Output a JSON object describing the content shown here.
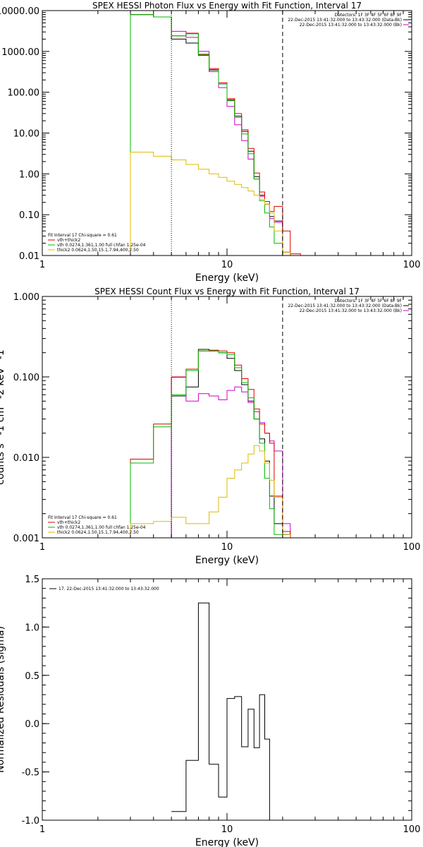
{
  "chart_data": [
    {
      "type": "line",
      "title": "SPEX HESSI Photon Flux vs Energy with Fit Function, Interval 17",
      "xlabel": "Energy (keV)",
      "ylabel": "",
      "xscale": "log",
      "yscale": "log",
      "xlim": [
        1,
        100
      ],
      "ylim": [
        0.01,
        10000
      ],
      "xticks": [
        {
          "v": 1,
          "label": "1"
        },
        {
          "v": 10,
          "label": "10"
        },
        {
          "v": 100,
          "label": "100"
        }
      ],
      "yticks": [
        {
          "v": 0.01,
          "label": "0.01"
        },
        {
          "v": 0.1,
          "label": "0.10"
        },
        {
          "v": 1,
          "label": "1.00"
        },
        {
          "v": 10,
          "label": "10.00"
        },
        {
          "v": 100,
          "label": "100.00"
        },
        {
          "v": 1000,
          "label": "1000.00"
        },
        {
          "v": 10000,
          "label": "10000.00"
        }
      ],
      "vlines": [
        {
          "x": 5,
          "style": "dotted"
        },
        {
          "x": 20,
          "style": "dashed"
        }
      ],
      "header_right": [
        "Detectors: 1F 3F 4F 5F 6F 8F 9F",
        "22-Dec-2015 13:41:32.000 to 13:43:32.000 (Data-Bk)",
        "22-Dec-2015 13:41:32.000 to 13:43:32.000 (Bk)"
      ],
      "fit_text": "Fit Interval 17   Chi-square = 0.61",
      "series": [
        {
          "name": "vth+thick2",
          "role": "data-bk",
          "color": "#000000",
          "edges": [
            3,
            4,
            5,
            6,
            7,
            8,
            9,
            10,
            11,
            12,
            13,
            14,
            15,
            16,
            17,
            18,
            20,
            22,
            25
          ],
          "values": [
            8000,
            7000,
            2000,
            1600,
            800,
            350,
            160,
            65,
            26,
            11,
            3.6,
            0.85,
            0.3,
            0.18,
            0.09,
            0.07,
            0.012,
            0.01
          ]
        },
        {
          "name": "bk",
          "role": "bk",
          "color": "#cc00cc",
          "edges": [
            3,
            4,
            5,
            6,
            7,
            8,
            9,
            10,
            11,
            12,
            13,
            14,
            15,
            16,
            17,
            18,
            20,
            22,
            25
          ],
          "values": [
            8000,
            7000,
            3100,
            2200,
            1000,
            320,
            130,
            45,
            16,
            6.5,
            2.3,
            0.75,
            0.28,
            0.18,
            0.08,
            0.065,
            0.012,
            0.01
          ]
        },
        {
          "name": "vth+thick2",
          "role": "model",
          "color": "#dd0000",
          "edges": [
            3,
            4,
            5,
            6,
            7,
            8,
            9,
            10,
            11,
            12,
            13,
            14,
            15,
            16,
            17,
            18,
            20,
            22,
            25
          ],
          "values": [
            8000,
            7000,
            2400,
            2800,
            850,
            380,
            170,
            70,
            30,
            12,
            4.2,
            1.05,
            0.36,
            0.21,
            0.12,
            0.16,
            0.04,
            0.011
          ]
        },
        {
          "name": "vth 0.0274,1.361,1.00  full chfan 1.25e-04",
          "role": "vth",
          "color": "#00bb00",
          "edges": [
            3,
            4,
            5,
            6,
            7,
            8,
            9,
            10,
            11,
            12,
            13,
            14,
            15,
            16,
            17,
            18,
            20
          ],
          "values": [
            8000,
            7000,
            2400,
            2700,
            820,
            360,
            160,
            62,
            24,
            9.5,
            3.1,
            0.75,
            0.22,
            0.11,
            0.05,
            0.02
          ]
        },
        {
          "name": "thick2 0.0624,1.50,15.1,7.94,400,2.50",
          "role": "thick2",
          "color": "#ddbb00",
          "edges": [
            3,
            4,
            5,
            6,
            7,
            8,
            9,
            10,
            11,
            12,
            13,
            14,
            15,
            16,
            17,
            18,
            20,
            22
          ],
          "values": [
            3.4,
            2.7,
            2.2,
            1.7,
            1.3,
            1.0,
            0.82,
            0.66,
            0.55,
            0.46,
            0.38,
            0.3,
            0.24,
            0.18,
            0.11,
            0.04,
            0.012
          ]
        }
      ]
    },
    {
      "type": "line",
      "title": "SPEX HESSI Count Flux vs Energy with Fit Function, Interval 17",
      "xlabel": "Energy (keV)",
      "ylabel": "counts s^-1 cm^-2 keV^-1",
      "xscale": "log",
      "yscale": "log",
      "xlim": [
        1,
        100
      ],
      "ylim": [
        0.001,
        1
      ],
      "xticks": [
        {
          "v": 1,
          "label": "1"
        },
        {
          "v": 10,
          "label": "10"
        },
        {
          "v": 100,
          "label": "100"
        }
      ],
      "yticks": [
        {
          "v": 0.001,
          "label": "0.001"
        },
        {
          "v": 0.01,
          "label": "0.010"
        },
        {
          "v": 0.1,
          "label": "0.100"
        },
        {
          "v": 1,
          "label": "1.000"
        }
      ],
      "vlines": [
        {
          "x": 5,
          "style": "dotted"
        },
        {
          "x": 20,
          "style": "dashed"
        }
      ],
      "header_right": [
        "Detectors: 1F 3F 4F 5F 6F 8F 9F",
        "22-Dec-2015 13:41:32.000 to 13:43:32.000 (Data-Bk)",
        "22-Dec-2015 13:41:32.000 to 13:43:32.000 (Bk)"
      ],
      "fit_text": "Fit Interval 17   Chi-square = 0.61",
      "series": [
        {
          "name": "vth+thick2",
          "role": "data-bk",
          "color": "#000000",
          "edges": [
            5,
            6,
            7,
            8,
            9,
            10,
            11,
            12,
            13,
            14,
            15,
            16,
            17,
            18,
            20,
            22,
            25
          ],
          "values": [
            0.058,
            0.075,
            0.22,
            0.21,
            0.2,
            0.17,
            0.12,
            0.08,
            0.05,
            0.03,
            0.017,
            0.009,
            0.0033,
            0.0015,
            0.0011,
            0.001
          ]
        },
        {
          "name": "bk",
          "role": "bk",
          "color": "#cc00cc",
          "edges": [
            5,
            6,
            7,
            8,
            9,
            10,
            11,
            12,
            13,
            14,
            15,
            16,
            17,
            18,
            20,
            22
          ],
          "values": [
            0.099,
            0.05,
            0.062,
            0.058,
            0.052,
            0.068,
            0.075,
            0.065,
            0.048,
            0.037,
            0.027,
            0.02,
            0.016,
            0.012,
            0.0015
          ]
        },
        {
          "name": "vth+thick2",
          "role": "model",
          "color": "#dd0000",
          "edges": [
            3,
            4,
            5,
            6,
            7,
            8,
            9,
            10,
            11,
            12,
            13,
            14,
            15,
            16,
            17,
            18,
            20,
            22,
            25
          ],
          "values": [
            0.0095,
            0.026,
            0.1,
            0.125,
            0.21,
            0.215,
            0.21,
            0.2,
            0.14,
            0.095,
            0.07,
            0.04,
            0.026,
            0.02,
            0.015,
            0.0033,
            0.0012,
            0.001
          ]
        },
        {
          "name": "vth 0.0274,1.361,1.00  full chfan 1.25e-04",
          "role": "vth",
          "color": "#00bb00",
          "edges": [
            3,
            4,
            5,
            6,
            7,
            8,
            9,
            10,
            11,
            12,
            13,
            14,
            15,
            16,
            17,
            18,
            20
          ],
          "values": [
            0.0085,
            0.024,
            0.06,
            0.12,
            0.21,
            0.21,
            0.2,
            0.19,
            0.13,
            0.085,
            0.055,
            0.03,
            0.015,
            0.0055,
            0.0023,
            0.0011
          ]
        },
        {
          "name": "thick2 0.0624,1.50,15.1,7.94,400,2.50",
          "role": "thick2",
          "color": "#ddbb00",
          "edges": [
            3,
            4,
            5,
            6,
            7,
            8,
            9,
            10,
            11,
            12,
            13,
            14,
            15,
            16,
            17,
            18,
            20,
            22,
            25
          ],
          "values": [
            0.0015,
            0.0016,
            0.0018,
            0.0015,
            0.0015,
            0.0021,
            0.0032,
            0.0055,
            0.007,
            0.0085,
            0.011,
            0.014,
            0.012,
            0.0085,
            0.0052,
            0.0032,
            0.0011,
            0.001
          ]
        }
      ]
    },
    {
      "type": "line",
      "title": "",
      "xlabel": "Energy (keV)",
      "ylabel": "Normalized Residuals (sigma)",
      "xscale": "log",
      "yscale": "linear",
      "xlim": [
        1,
        100
      ],
      "ylim": [
        -1.0,
        1.5
      ],
      "xticks": [
        {
          "v": 1,
          "label": "1"
        },
        {
          "v": 10,
          "label": "10"
        },
        {
          "v": 100,
          "label": "100"
        }
      ],
      "yticks": [
        {
          "v": -1.0,
          "label": "-1.0"
        },
        {
          "v": -0.5,
          "label": "-0.5"
        },
        {
          "v": 0.0,
          "label": "0.0"
        },
        {
          "v": 0.5,
          "label": "0.5"
        },
        {
          "v": 1.0,
          "label": "1.0"
        },
        {
          "v": 1.5,
          "label": "1.5"
        }
      ],
      "legend_text": "17. 22-Dec-2015 13:41:32.000 to 13:43:32.000",
      "series": [
        {
          "name": "residuals",
          "color": "#000000",
          "edges": [
            5,
            6,
            7,
            8,
            9,
            10,
            11,
            12,
            13,
            14,
            15,
            16,
            17,
            18,
            20
          ],
          "values": [
            -0.91,
            -0.38,
            1.25,
            -0.42,
            -0.76,
            0.26,
            0.28,
            -0.24,
            0.15,
            -0.25,
            0.3,
            -0.16,
            -1.0,
            -1.0
          ]
        }
      ]
    }
  ]
}
